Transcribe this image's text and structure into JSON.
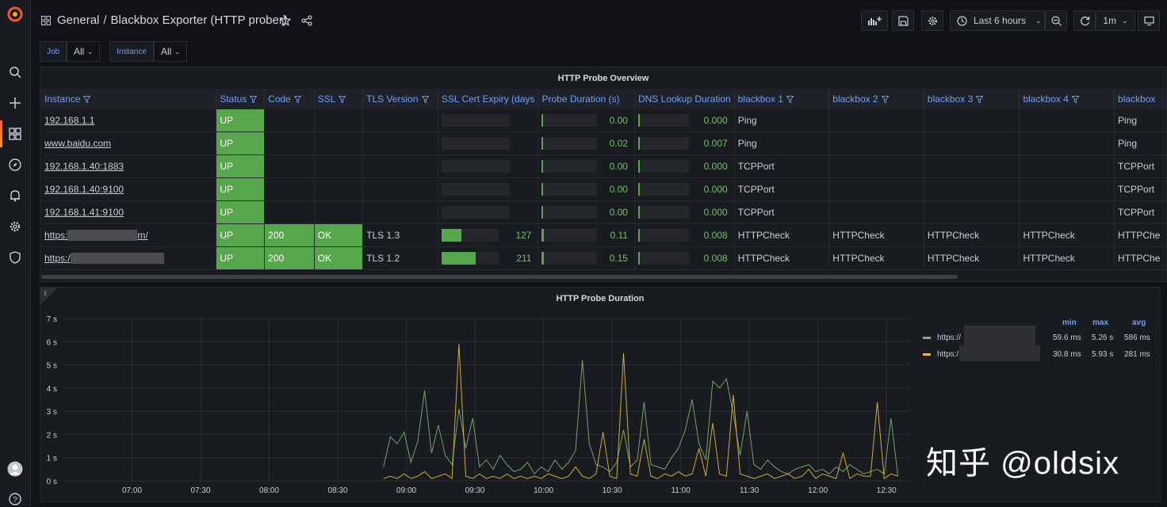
{
  "header": {
    "folder": "General",
    "separator": "/",
    "dashboard_title": "Blackbox Exporter (HTTP prober)",
    "time_range": "Last 6 hours",
    "refresh_interval": "1m"
  },
  "variables": [
    {
      "label": "Job",
      "value": "All"
    },
    {
      "label": "Instance",
      "value": "All"
    }
  ],
  "table_panel": {
    "title": "HTTP Probe Overview",
    "columns": [
      "Instance",
      "Status",
      "Code",
      "SSL",
      "TLS Version",
      "SSL Cert Expiry (days",
      "Probe Duration (s)",
      "DNS Lookup Duration",
      "blackbox 1",
      "blackbox 2",
      "blackbox 3",
      "blackbox 4",
      "blackbox"
    ],
    "rows": [
      {
        "instance": "192.168.1.1",
        "status": "UP",
        "code": "",
        "ssl": "",
        "tls": "",
        "cert_days": "",
        "cert_frac": 0,
        "probe": "0.00",
        "probe_frac": 0,
        "dns": "0.000",
        "b1": "Ping",
        "b2": "",
        "b3": "",
        "b4": "",
        "b5": "Ping"
      },
      {
        "instance": "www.baidu.com",
        "status": "UP",
        "code": "",
        "ssl": "",
        "tls": "",
        "cert_days": "",
        "cert_frac": 0,
        "probe": "0.02",
        "probe_frac": 0.01,
        "dns": "0.007",
        "b1": "Ping",
        "b2": "",
        "b3": "",
        "b4": "",
        "b5": "Ping"
      },
      {
        "instance": "192.168.1.40:1883",
        "status": "UP",
        "code": "",
        "ssl": "",
        "tls": "",
        "cert_days": "",
        "cert_frac": 0,
        "probe": "0.00",
        "probe_frac": 0,
        "dns": "0.000",
        "b1": "TCPPort",
        "b2": "",
        "b3": "",
        "b4": "",
        "b5": "TCPPort"
      },
      {
        "instance": "192.168.1.40:9100",
        "status": "UP",
        "code": "",
        "ssl": "",
        "tls": "",
        "cert_days": "",
        "cert_frac": 0,
        "probe": "0.00",
        "probe_frac": 0,
        "dns": "0.000",
        "b1": "TCPPort",
        "b2": "",
        "b3": "",
        "b4": "",
        "b5": "TCPPort"
      },
      {
        "instance": "192.168.1.41:9100",
        "status": "UP",
        "code": "",
        "ssl": "",
        "tls": "",
        "cert_days": "",
        "cert_frac": 0,
        "probe": "0.00",
        "probe_frac": 0,
        "dns": "0.000",
        "b1": "TCPPort",
        "b2": "",
        "b3": "",
        "b4": "",
        "b5": "TCPPort"
      },
      {
        "instance_prefix": "https:",
        "instance_suffix": "m/",
        "status": "UP",
        "code": "200",
        "ssl": "OK",
        "tls": "TLS 1.3",
        "cert_days": "127",
        "cert_frac": 0.35,
        "probe": "0.11",
        "probe_frac": 0.03,
        "dns": "0.008",
        "b1": "HTTPCheck",
        "b2": "HTTPCheck",
        "b3": "HTTPCheck",
        "b4": "HTTPCheck",
        "b5": "HTTPChe"
      },
      {
        "instance_prefix": "https:/",
        "instance_suffix": "",
        "status": "UP",
        "code": "200",
        "ssl": "OK",
        "tls": "TLS 1.2",
        "cert_days": "211",
        "cert_frac": 0.6,
        "probe": "0.15",
        "probe_frac": 0.04,
        "dns": "0.008",
        "b1": "HTTPCheck",
        "b2": "HTTPCheck",
        "b3": "HTTPCheck",
        "b4": "HTTPCheck",
        "b5": "HTTPChe"
      }
    ]
  },
  "graph_panel": {
    "title": "HTTP Probe Duration",
    "info_glyph": "i",
    "legend": {
      "headers": [
        "min",
        "max",
        "avg"
      ],
      "series": [
        {
          "label": "https://",
          "min": "59.6 ms",
          "max": "5.26 s",
          "avg": "586 ms",
          "color": "#7eb26d"
        },
        {
          "label": "https:/",
          "min": "30.8 ms",
          "max": "5.93 s",
          "avg": "281 ms",
          "color": "#eab839"
        }
      ]
    }
  },
  "chart_data": {
    "type": "line",
    "title": "HTTP Probe Duration",
    "y_ticks": [
      "0 s",
      "1 s",
      "2 s",
      "3 s",
      "4 s",
      "5 s",
      "6 s",
      "7 s"
    ],
    "ylim": [
      0,
      7
    ],
    "x_ticks": [
      "07:00",
      "07:30",
      "08:00",
      "08:30",
      "09:00",
      "09:30",
      "10:00",
      "10:30",
      "11:00",
      "11:30",
      "12:00",
      "12:30"
    ],
    "xlim_minutes": [
      390,
      760
    ],
    "grid": true,
    "legend_position": "right",
    "series": [
      {
        "name": "https://",
        "color": "#7eb26d",
        "x": [
          530,
          533,
          536,
          539,
          542,
          545,
          548,
          551,
          554,
          557,
          560,
          563,
          566,
          569,
          572,
          575,
          578,
          581,
          584,
          587,
          590,
          593,
          596,
          599,
          602,
          605,
          608,
          611,
          614,
          617,
          620,
          623,
          626,
          629,
          632,
          635,
          638,
          641,
          644,
          647,
          650,
          653,
          656,
          659,
          662,
          665,
          668,
          671,
          674,
          677,
          680,
          683,
          686,
          689,
          692,
          695,
          698,
          701,
          704,
          707,
          710,
          713,
          716,
          719,
          722,
          725,
          728,
          731,
          734,
          737,
          740,
          743,
          746,
          749,
          752,
          755
        ],
        "y": [
          0.6,
          1.9,
          1.6,
          2.1,
          0.8,
          1.7,
          3.9,
          1.2,
          2.4,
          1.1,
          0.7,
          3.1,
          1.4,
          2.7,
          0.6,
          0.9,
          0.5,
          1.1,
          0.7,
          0.4,
          0.5,
          0.8,
          0.3,
          0.6,
          0.4,
          0.9,
          0.5,
          0.8,
          1.3,
          5.2,
          1.6,
          0.7,
          0.6,
          0.4,
          0.8,
          2.2,
          0.6,
          0.9,
          3.4,
          0.7,
          0.6,
          0.5,
          1.0,
          1.4,
          2.2,
          3.5,
          1.6,
          0.9,
          4.3,
          4.0,
          4.4,
          2.9,
          1.1,
          3.0,
          0.7,
          0.5,
          0.9,
          0.6,
          0.4,
          0.3,
          0.5,
          0.6,
          0.7,
          0.4,
          0.5,
          0.3,
          0.6,
          0.4,
          0.7,
          0.5,
          0.3,
          0.4,
          0.5,
          0.3,
          2.7,
          0.2
        ]
      },
      {
        "name": "https:/",
        "color": "#eab839",
        "x": [
          530,
          533,
          536,
          539,
          542,
          545,
          548,
          551,
          554,
          557,
          560,
          563,
          566,
          569,
          572,
          575,
          578,
          581,
          584,
          587,
          590,
          593,
          596,
          599,
          602,
          605,
          608,
          611,
          614,
          617,
          620,
          623,
          626,
          629,
          632,
          635,
          638,
          641,
          644,
          647,
          650,
          653,
          656,
          659,
          662,
          665,
          668,
          671,
          674,
          677,
          680,
          683,
          686,
          689,
          692,
          695,
          698,
          701,
          704,
          707,
          710,
          713,
          716,
          719,
          722,
          725,
          728,
          731,
          734,
          737,
          740,
          743,
          746,
          749,
          752,
          755
        ],
        "y": [
          0.1,
          0.2,
          0.1,
          0.3,
          0.1,
          0.2,
          0.4,
          0.1,
          0.2,
          0.3,
          0.1,
          5.9,
          0.2,
          0.1,
          0.3,
          0.1,
          0.2,
          0.1,
          0.3,
          0.1,
          0.2,
          0.1,
          0.2,
          0.1,
          0.3,
          0.2,
          0.1,
          0.2,
          0.6,
          0.2,
          0.1,
          0.3,
          2.1,
          0.2,
          0.1,
          5.5,
          0.3,
          0.2,
          1.8,
          0.2,
          0.1,
          0.3,
          0.2,
          0.4,
          0.2,
          0.3,
          1.4,
          0.2,
          2.5,
          0.3,
          0.2,
          3.7,
          0.3,
          0.2,
          0.1,
          0.2,
          0.3,
          0.1,
          0.2,
          0.3,
          0.1,
          0.2,
          0.5,
          0.1,
          0.3,
          0.2,
          0.1,
          1.2,
          0.1,
          0.3,
          0.2,
          0.2,
          3.4,
          0.1,
          0.3,
          0.2
        ]
      }
    ]
  },
  "colors": {
    "accent": "#6e9fff",
    "ok": "#56a64b",
    "series1": "#7eb26d",
    "series2": "#eab839"
  },
  "watermark": "知乎 @oldsix"
}
